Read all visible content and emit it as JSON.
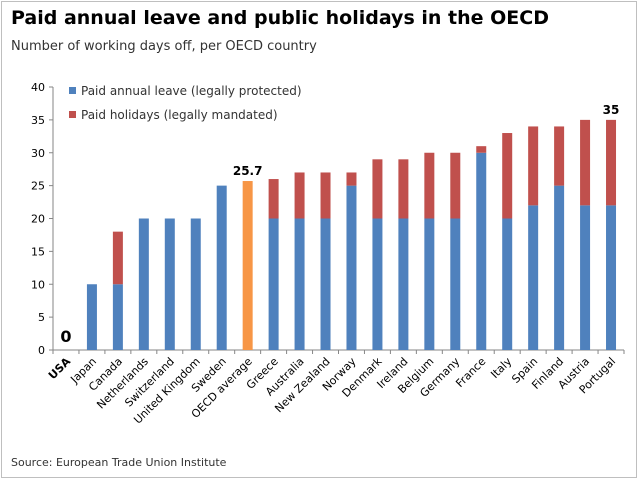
{
  "header": {
    "title": "Paid annual leave and public holidays in the OECD",
    "subtitle": "Number of working days off, per OECD country"
  },
  "footer": {
    "source": "Source: European Trade Union Institute"
  },
  "colors": {
    "annual": "#4f81bd",
    "holidays": "#c0504d",
    "average": "#f79646",
    "axis": "#868686"
  },
  "chart_data": {
    "type": "bar",
    "stacked": true,
    "title": "Paid annual leave and public holidays in the OECD",
    "subtitle": "Number of working days off, per OECD country",
    "xlabel": "",
    "ylabel": "",
    "ylim": [
      0,
      40
    ],
    "yticks": [
      0,
      5,
      10,
      15,
      20,
      25,
      30,
      35,
      40
    ],
    "grid": false,
    "legend_position": "top-left",
    "categories": [
      "USA",
      "Japan",
      "Canada",
      "Netherlands",
      "Switzerland",
      "United Kingdom",
      "Sweden",
      "OECD average",
      "Greece",
      "Australia",
      "New Zealand",
      "Norway",
      "Denmark",
      "Ireland",
      "Belgium",
      "Germany",
      "France",
      "Italy",
      "Spain",
      "Finland",
      "Austria",
      "Portugal"
    ],
    "bold_categories": [
      "USA"
    ],
    "series": [
      {
        "name": "Paid annual leave (legally protected)",
        "values": [
          0,
          10,
          10,
          20,
          20,
          20,
          25,
          25.7,
          20,
          20,
          20,
          25,
          20,
          20,
          20,
          20,
          30,
          20,
          22,
          25,
          22,
          22
        ]
      },
      {
        "name": "Paid holidays (legally mandated)",
        "values": [
          0,
          0,
          8,
          0,
          0,
          0,
          0,
          0,
          6,
          7,
          7,
          2,
          9,
          9,
          10,
          10,
          1,
          13,
          12,
          9,
          13,
          13
        ]
      }
    ],
    "highlight_category": "OECD average",
    "data_labels": [
      {
        "category": "USA",
        "text": "0"
      },
      {
        "category": "OECD average",
        "text": "25.7"
      },
      {
        "category": "Portugal",
        "text": "35"
      }
    ],
    "source": "Source: European Trade Union Institute"
  }
}
